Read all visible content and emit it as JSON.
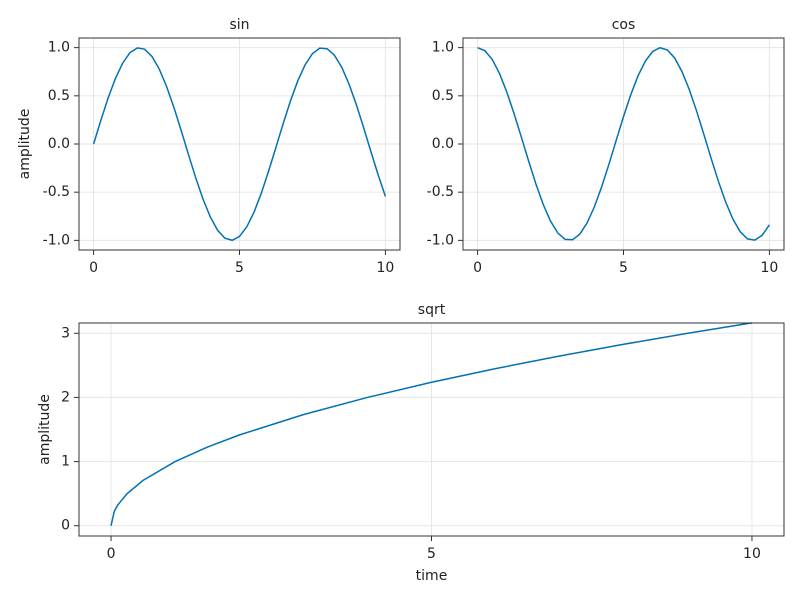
{
  "chart_data": [
    {
      "type": "line",
      "title": "sin",
      "ylabel": "amplitude",
      "color": "#0072b2",
      "grid": true,
      "x": [
        0,
        0.25,
        0.5,
        0.75,
        1,
        1.25,
        1.5,
        1.75,
        2,
        2.25,
        2.5,
        2.75,
        3,
        3.25,
        3.5,
        3.75,
        4,
        4.25,
        4.5,
        4.75,
        5,
        5.25,
        5.5,
        5.75,
        6,
        6.25,
        6.5,
        6.75,
        7,
        7.25,
        7.5,
        7.75,
        8,
        8.25,
        8.5,
        8.75,
        9,
        9.25,
        9.5,
        9.75,
        10
      ],
      "values": [
        0,
        0.247,
        0.479,
        0.682,
        0.841,
        0.949,
        0.997,
        0.984,
        0.909,
        0.778,
        0.598,
        0.382,
        0.141,
        -0.108,
        -0.351,
        -0.572,
        -0.757,
        -0.895,
        -0.978,
        -0.999,
        -0.959,
        -0.859,
        -0.706,
        -0.508,
        -0.279,
        -0.033,
        0.215,
        0.45,
        0.657,
        0.823,
        0.938,
        0.995,
        0.989,
        0.923,
        0.798,
        0.624,
        0.412,
        0.174,
        -0.075,
        -0.319,
        -0.544
      ],
      "xlim": [
        -0.5,
        10.5
      ],
      "xticks": [
        0,
        5,
        10
      ],
      "ylim": [
        -1.1,
        1.1
      ],
      "yticks": [
        {
          "value": 1,
          "label": "1.0"
        },
        {
          "value": 0.5,
          "label": "0.5"
        },
        {
          "value": 0,
          "label": "0.0"
        },
        {
          "value": -0.5,
          "label": "-0.5"
        },
        {
          "value": -1,
          "label": "-1.0"
        }
      ]
    },
    {
      "type": "line",
      "title": "cos",
      "color": "#0072b2",
      "grid": true,
      "x": [
        0,
        0.25,
        0.5,
        0.75,
        1,
        1.25,
        1.5,
        1.75,
        2,
        2.25,
        2.5,
        2.75,
        3,
        3.25,
        3.5,
        3.75,
        4,
        4.25,
        4.5,
        4.75,
        5,
        5.25,
        5.5,
        5.75,
        6,
        6.25,
        6.5,
        6.75,
        7,
        7.25,
        7.5,
        7.75,
        8,
        8.25,
        8.5,
        8.75,
        9,
        9.25,
        9.5,
        9.75,
        10
      ],
      "values": [
        1,
        0.969,
        0.878,
        0.732,
        0.54,
        0.315,
        0.071,
        -0.178,
        -0.416,
        -0.628,
        -0.801,
        -0.924,
        -0.99,
        -0.994,
        -0.936,
        -0.82,
        -0.654,
        -0.446,
        -0.211,
        0.038,
        0.284,
        0.512,
        0.709,
        0.861,
        0.96,
        0.999,
        0.977,
        0.894,
        0.754,
        0.568,
        0.347,
        0.103,
        -0.146,
        -0.386,
        -0.602,
        -0.78,
        -0.911,
        -0.985,
        -0.997,
        -0.948,
        -0.839
      ],
      "xlim": [
        -0.5,
        10.5
      ],
      "xticks": [
        0,
        5,
        10
      ],
      "ylim": [
        -1.1,
        1.1
      ],
      "yticks": [
        {
          "value": 1,
          "label": "1.0"
        },
        {
          "value": 0.5,
          "label": "0.5"
        },
        {
          "value": 0,
          "label": "0.0"
        },
        {
          "value": -0.5,
          "label": "-0.5"
        },
        {
          "value": -1,
          "label": "-1.0"
        }
      ]
    },
    {
      "type": "line",
      "title": "sqrt",
      "xlabel": "time",
      "ylabel": "amplitude",
      "color": "#0072b2",
      "grid": true,
      "x": [
        0,
        0.05,
        0.1,
        0.25,
        0.5,
        1,
        1.5,
        2,
        3,
        4,
        5,
        6,
        7,
        8,
        9,
        10
      ],
      "values": [
        0,
        0.224,
        0.316,
        0.5,
        0.707,
        1,
        1.225,
        1.414,
        1.732,
        2,
        2.236,
        2.449,
        2.646,
        2.828,
        3,
        3.162
      ],
      "xlim": [
        -0.5,
        10.5
      ],
      "xticks": [
        0,
        5,
        10
      ],
      "ylim": [
        -0.16,
        3.16
      ],
      "yticks": [
        0,
        1,
        2,
        3
      ]
    }
  ]
}
